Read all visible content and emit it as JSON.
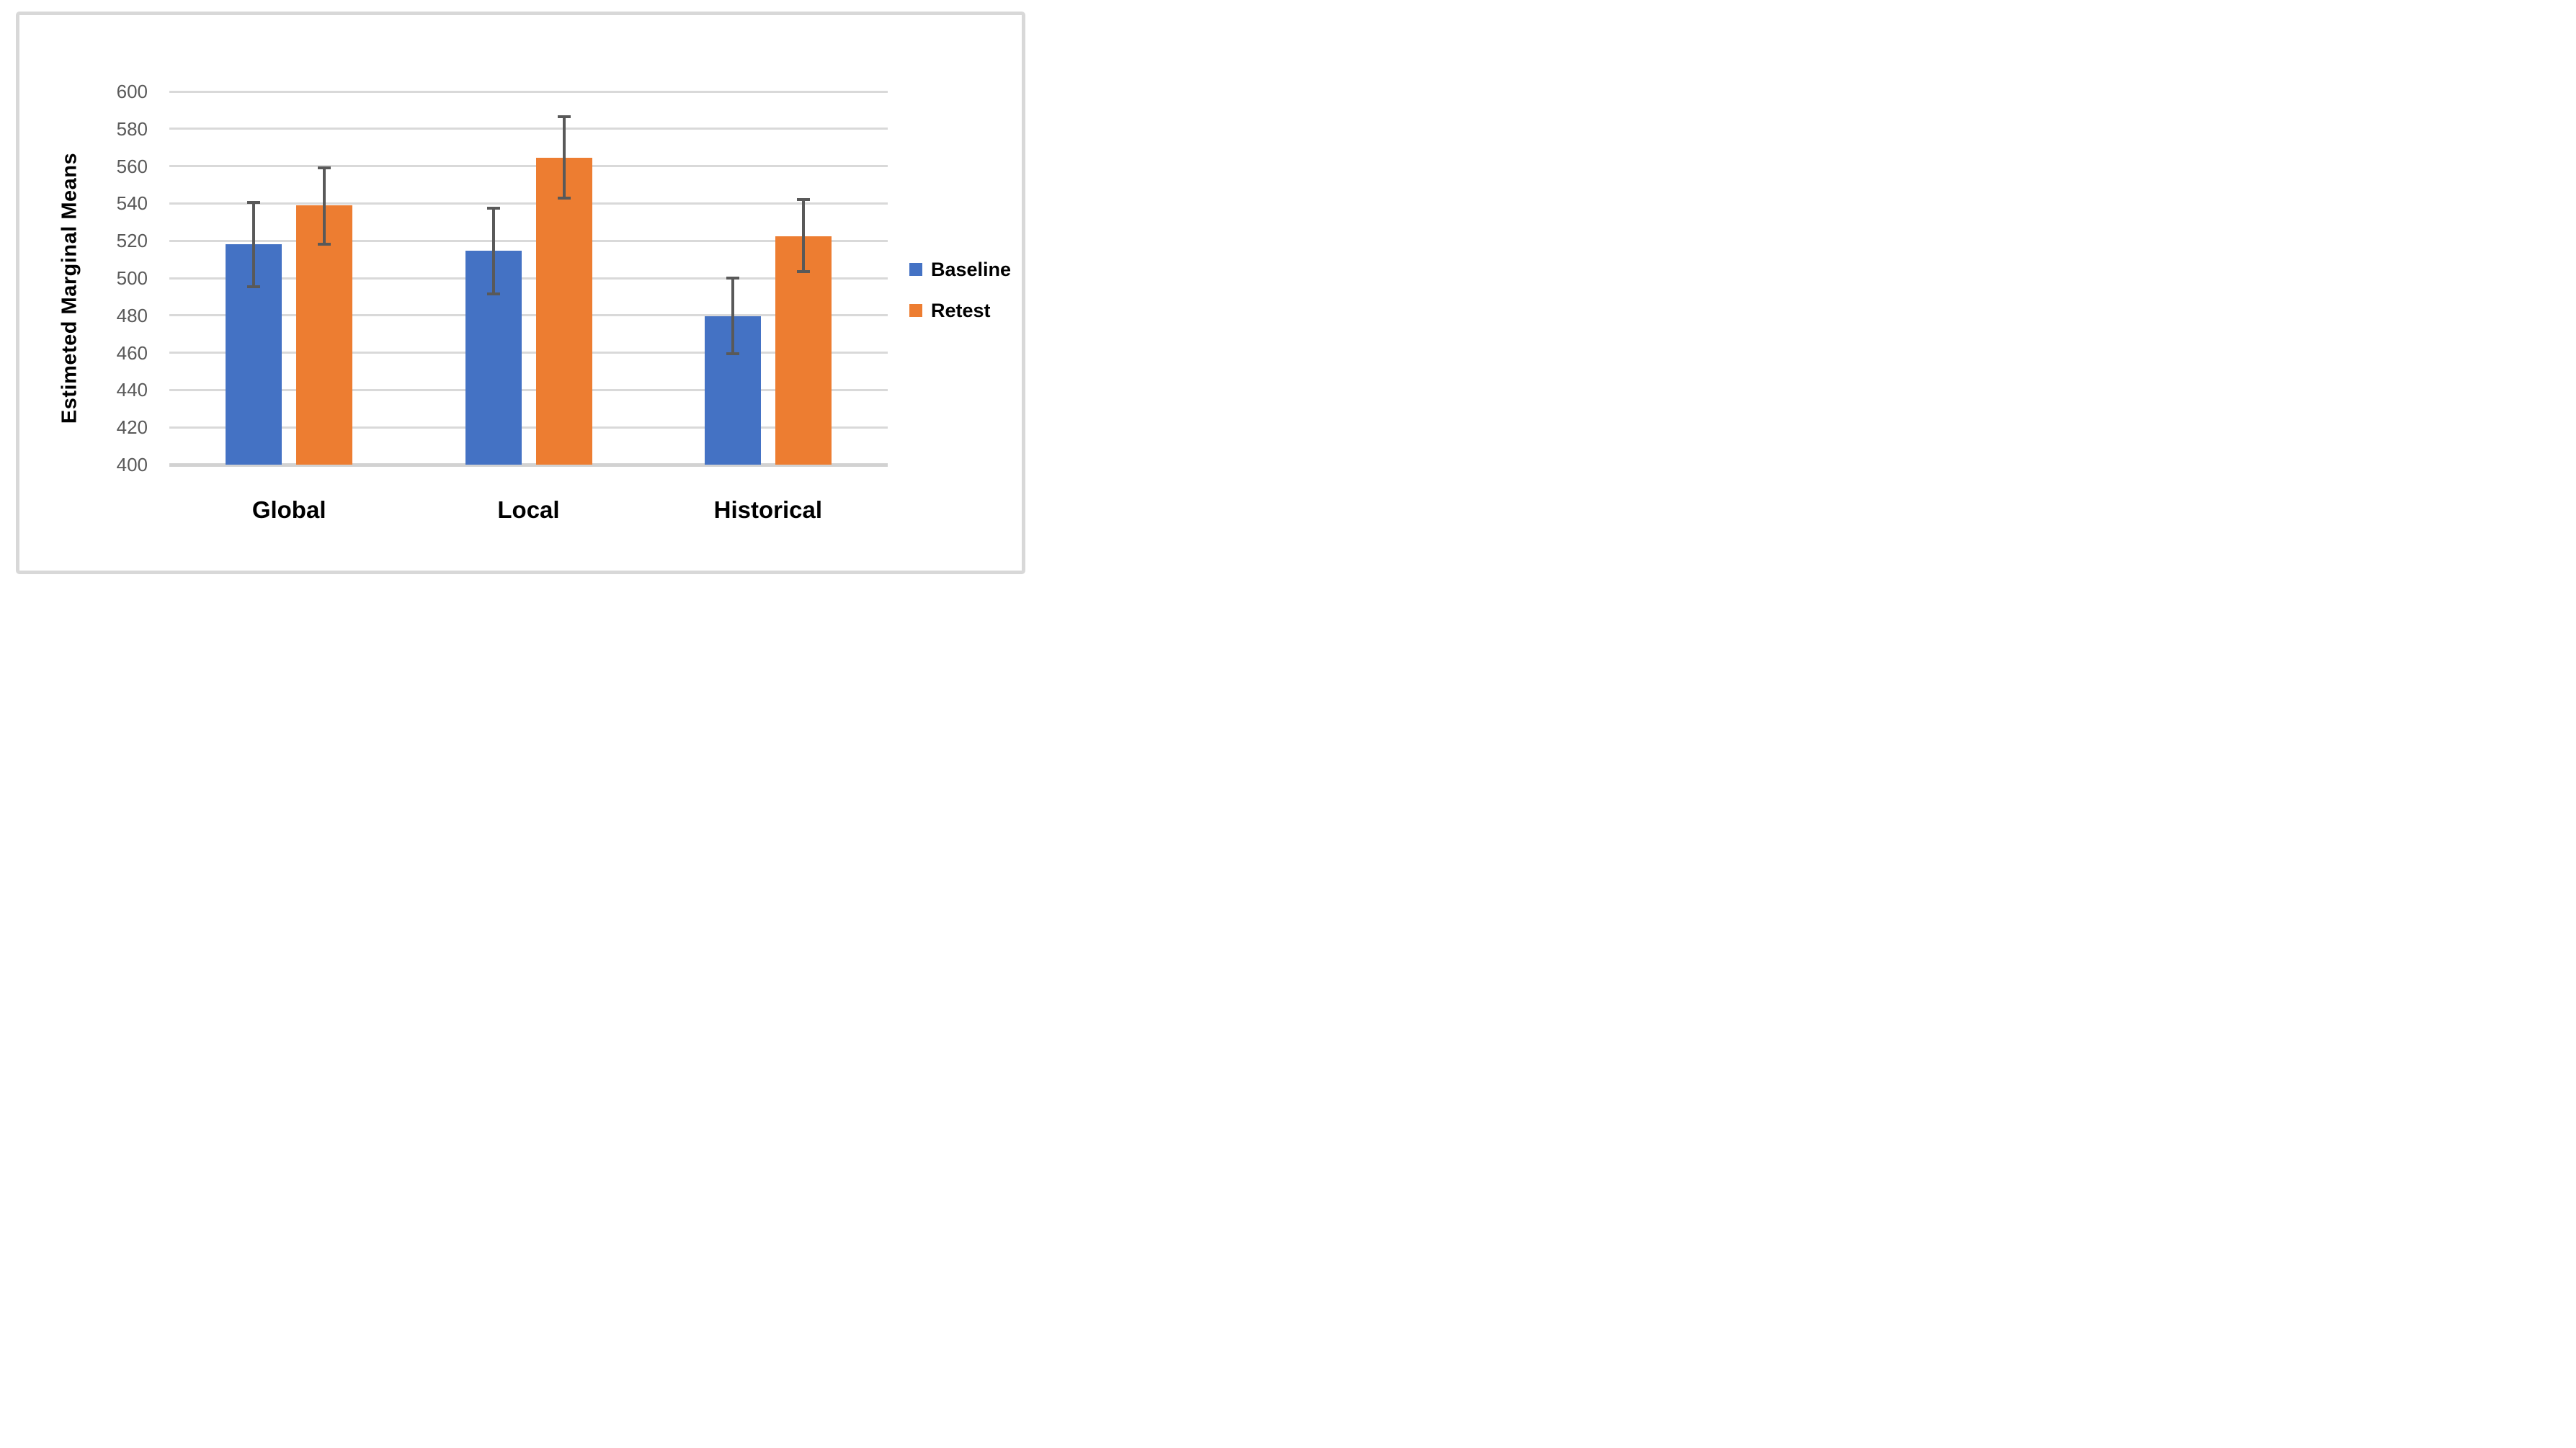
{
  "chart_data": {
    "type": "bar",
    "title": "",
    "xlabel": "",
    "ylabel": "Estimeted Marginal Means",
    "categories": [
      "Global",
      "Local",
      "Historical"
    ],
    "series": [
      {
        "name": "Baseline",
        "color": "#4472C4",
        "values": [
          518,
          514.5,
          479.5
        ],
        "error_low": [
          495.5,
          491.5,
          459.5
        ],
        "error_high": [
          540.5,
          537.5,
          500
        ]
      },
      {
        "name": "Retest",
        "color": "#ED7D31",
        "values": [
          539,
          564.5,
          522.5
        ],
        "error_low": [
          518,
          543,
          503.5
        ],
        "error_high": [
          559,
          586.5,
          542
        ]
      }
    ],
    "ylim": [
      400,
      600
    ],
    "ytick_step": 20,
    "yticks": [
      600,
      580,
      560,
      540,
      520,
      500,
      480,
      460,
      440,
      420,
      400
    ],
    "grid": true,
    "legend_position": "right",
    "error_bars": true
  },
  "colors": {
    "background": "#FFFFFF",
    "frame_border": "#D8D8D8",
    "gridline": "#D9D9D9",
    "axis_line": "#D2D2D2",
    "tick_label": "#595959",
    "error_bar": "#595959",
    "text": "#000000",
    "series_baseline": "#4472C4",
    "series_retest": "#ED7D31"
  }
}
